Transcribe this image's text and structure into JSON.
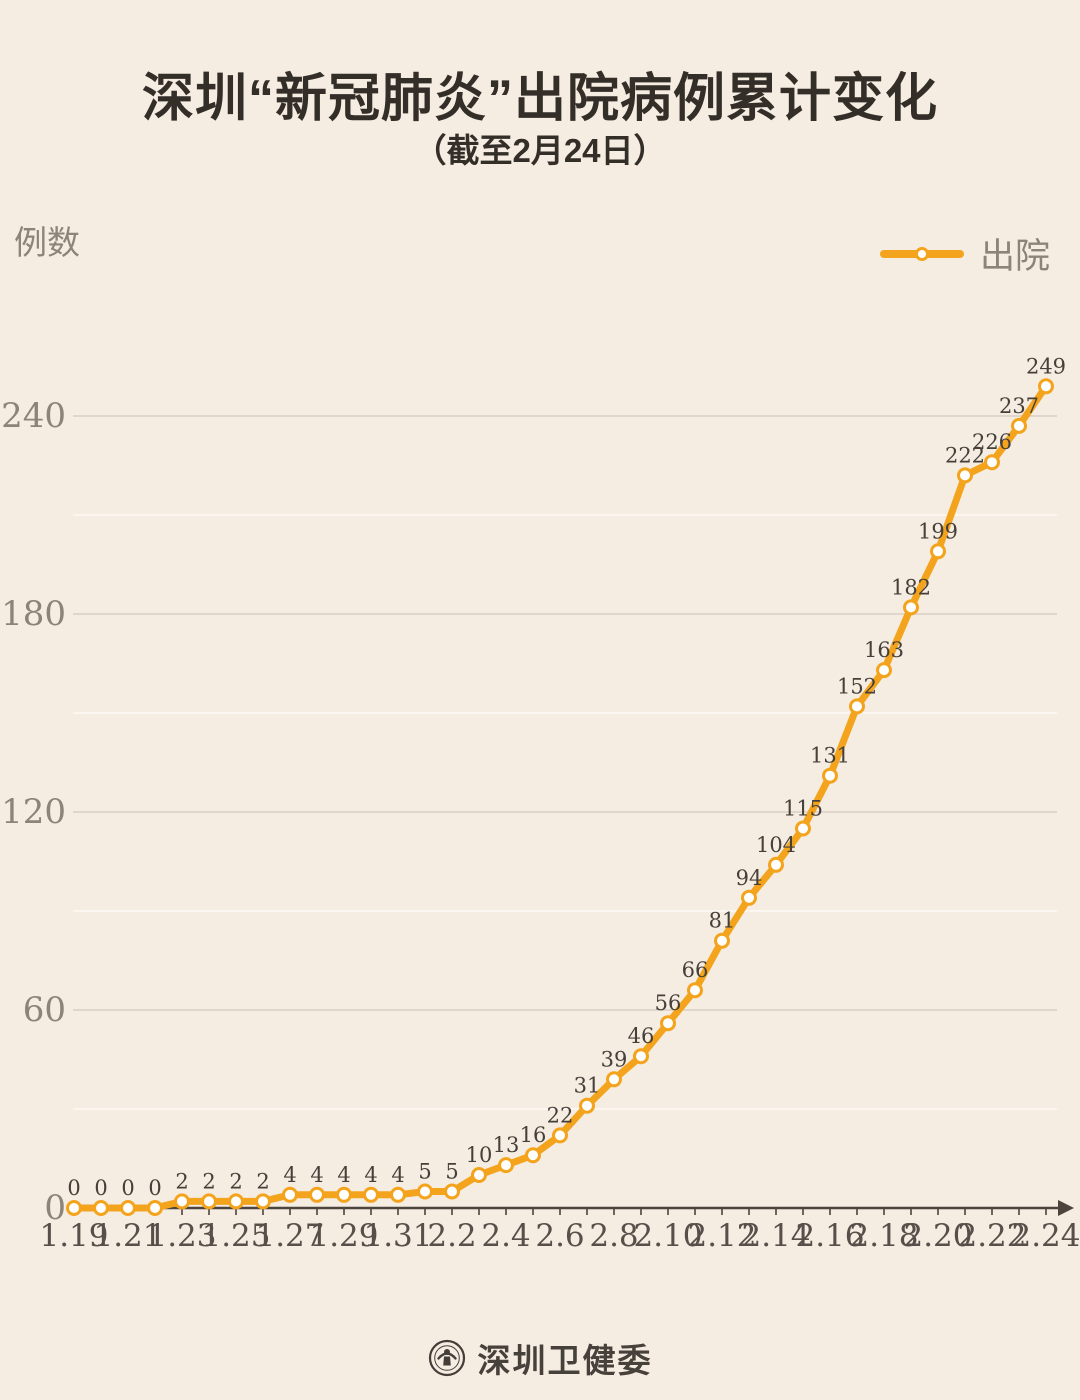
{
  "page": {
    "title": "深圳“新冠肺炎”出院病例累计变化",
    "subtitle": "（截至2月24日）",
    "y_axis_unit_label": "例数",
    "legend_label": "出院",
    "footer_org": "深圳卫健委"
  },
  "colors": {
    "bg": "#f5ece2",
    "accent": "#f4a41c",
    "gray": "#8c8379",
    "dark": "#332e28",
    "axis": "#4c453d",
    "datalabel": "#454039",
    "gridmajor": "#d9cfc4",
    "gridminor": "#fbf6ef",
    "footer": "#46413b",
    "marker_fill": "#ffffff"
  },
  "chart_data": {
    "type": "line",
    "title": "深圳“新冠肺炎”出院病例累计变化",
    "subtitle": "（截至2月24日）",
    "ylabel": "例数",
    "legend": [
      "出院"
    ],
    "legend_position": "top-right",
    "grid": "horizontal",
    "ylim": [
      0,
      264
    ],
    "y_ticks_labeled": [
      0,
      60,
      120,
      180,
      240
    ],
    "gridline_step": 30,
    "x_tick_label_every": 2,
    "x_tick_labels_shown": [
      "1.19",
      "1.21",
      "1.23",
      "1.25",
      "1.27",
      "1.29",
      "1.31",
      "2.2",
      "2.4",
      "2.6",
      "2.8",
      "2.10",
      "2.12",
      "2.14",
      "2.16",
      "2.18",
      "2.20",
      "2.22",
      "2.24"
    ],
    "categories": [
      "1.19",
      "1.20",
      "1.21",
      "1.22",
      "1.23",
      "1.24",
      "1.25",
      "1.26",
      "1.27",
      "1.28",
      "1.29",
      "1.30",
      "1.31",
      "2.1",
      "2.2",
      "2.3",
      "2.4",
      "2.5",
      "2.6",
      "2.7",
      "2.8",
      "2.9",
      "2.10",
      "2.11",
      "2.12",
      "2.13",
      "2.14",
      "2.15",
      "2.16",
      "2.17",
      "2.18",
      "2.19",
      "2.20",
      "2.21",
      "2.22",
      "2.23",
      "2.24"
    ],
    "series": [
      {
        "name": "出院",
        "values": [
          0,
          0,
          0,
          0,
          2,
          2,
          2,
          2,
          4,
          4,
          4,
          4,
          4,
          5,
          5,
          10,
          13,
          16,
          22,
          31,
          39,
          46,
          56,
          66,
          81,
          94,
          104,
          115,
          131,
          152,
          163,
          182,
          199,
          222,
          226,
          237,
          249
        ]
      }
    ]
  }
}
